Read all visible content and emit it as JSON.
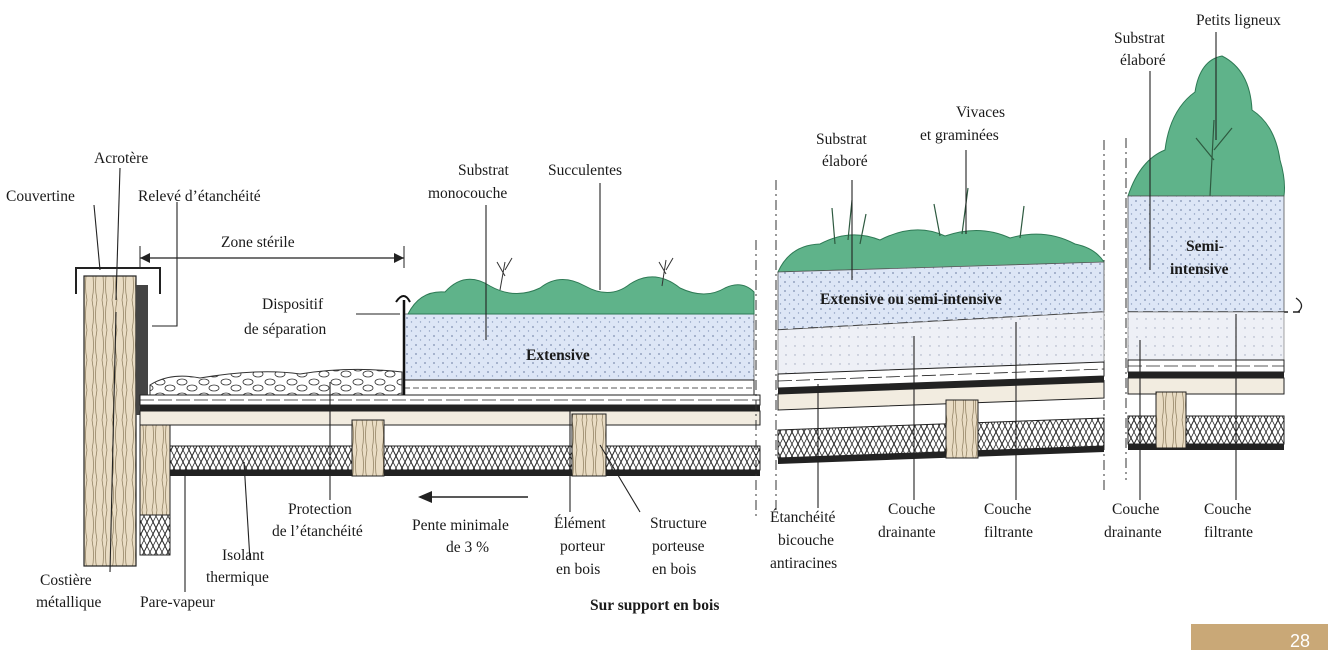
{
  "labels": {
    "acrotere": "Acrotère",
    "couvertine": "Couvertine",
    "releve_line1": "Relevé d’étanchéité",
    "zone_sterile": "Zone stérile",
    "dispositif_line1": "Dispositif",
    "dispositif_line2": "de séparation",
    "substrat_mono_line1": "Substrat",
    "substrat_mono_line2": "monocouche",
    "succulentes": "Succulentes",
    "extensive": "Extensive",
    "substrat_elabore_a_line1": "Substrat",
    "substrat_elabore_a_line2": "élaboré",
    "vivaces_line1": "Vivaces",
    "vivaces_line2": "et graminées",
    "ext_semi": "Extensive ou semi-intensive",
    "substrat_elabore_b_line1": "Substrat",
    "substrat_elabore_b_line2": "élaboré",
    "petits_ligneux": "Petits ligneux",
    "semi_line1": "Semi-",
    "semi_line2": "intensive",
    "costiere_line1": "Costière",
    "costiere_line2": "métallique",
    "pare_vapeur": "Pare-vapeur",
    "isolant_line1": "Isolant",
    "isolant_line2": "thermique",
    "protection_line1": "Protection",
    "protection_line2": "de l’étanchéité",
    "pente_line1": "Pente minimale",
    "pente_line2": "de 3 %",
    "element_line1": "Élément",
    "element_line2": "porteur",
    "element_line3": "en bois",
    "structure_line1": "Structure",
    "structure_line2": "porteuse",
    "structure_line3": "en bois",
    "etancheite_line1": "Étanchéité",
    "etancheite_line2": "bicouche",
    "etancheite_line3": "antiracines",
    "couche_drainante_a_line1": "Couche",
    "couche_drainante_a_line2": "drainante",
    "couche_filtrante_a_line1": "Couche",
    "couche_filtrante_a_line2": "filtrante",
    "couche_drainante_b_line1": "Couche",
    "couche_drainante_b_line2": "drainante",
    "couche_filtrante_b_line1": "Couche",
    "couche_filtrante_b_line2": "filtrante",
    "support": "Sur support en bois"
  },
  "slide_number": "28",
  "colors": {
    "vegetation": "#5fb38a",
    "substrate": "#dde6f6",
    "wood": "#e9dcc4",
    "badge": "#c9a877"
  }
}
